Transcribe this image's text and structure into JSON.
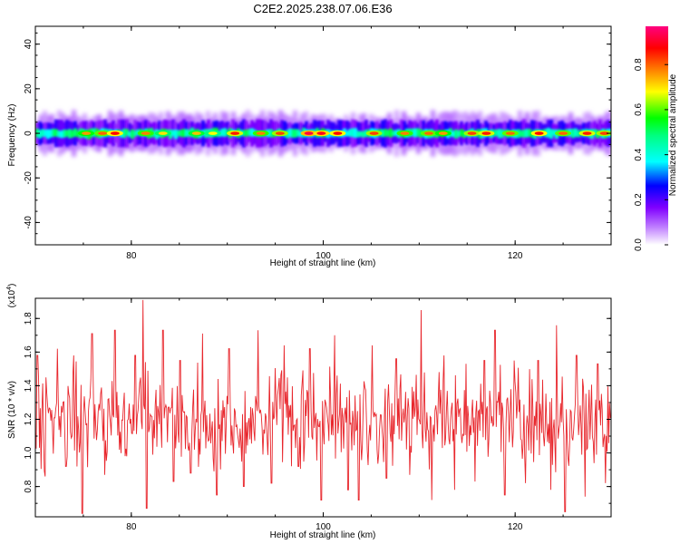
{
  "title": "C2E2.2025.238.07.06.E36",
  "chart_data": [
    {
      "type": "heatmap",
      "name": "spectrogram",
      "xlabel": "Height of straight line (km)",
      "ylabel": "Frequency (Hz)",
      "xlim": [
        70,
        130
      ],
      "ylim": [
        -50,
        48
      ],
      "xticks": [
        "80",
        "100",
        "120"
      ],
      "yticks": [
        "-40",
        "-20",
        "0",
        "20",
        "40"
      ],
      "colorbar": {
        "label": "Normalized spectral amplitude",
        "range": [
          0,
          0.97
        ],
        "ticks": [
          "0.0",
          "0.2",
          "0.4",
          "0.6",
          "0.8"
        ],
        "colors": [
          "#ffffff",
          "#c080ff",
          "#8000ff",
          "#0000ff",
          "#00ffff",
          "#00ff80",
          "#00ff00",
          "#ffff00",
          "#ff8000",
          "#ff0000",
          "#ff0080"
        ]
      },
      "band": {
        "center_hz": 0,
        "core_halfwidth_hz": 2,
        "outer_halfwidth_hz": 7
      },
      "peaks": [
        {
          "x": 75.3,
          "v": 0.78
        },
        {
          "x": 77.0,
          "v": 0.82
        },
        {
          "x": 78.3,
          "v": 0.9
        },
        {
          "x": 81.5,
          "v": 0.8
        },
        {
          "x": 83.3,
          "v": 0.72
        },
        {
          "x": 86.8,
          "v": 0.75
        },
        {
          "x": 88.5,
          "v": 0.7
        },
        {
          "x": 90.8,
          "v": 0.88
        },
        {
          "x": 93.5,
          "v": 0.8
        },
        {
          "x": 95.5,
          "v": 0.85
        },
        {
          "x": 98.5,
          "v": 0.95
        },
        {
          "x": 99.8,
          "v": 0.92
        },
        {
          "x": 101.5,
          "v": 0.9
        },
        {
          "x": 105.3,
          "v": 0.85
        },
        {
          "x": 108.5,
          "v": 0.8
        },
        {
          "x": 111.0,
          "v": 0.82
        },
        {
          "x": 112.5,
          "v": 0.78
        },
        {
          "x": 115.5,
          "v": 0.85
        },
        {
          "x": 117.0,
          "v": 0.88
        },
        {
          "x": 119.5,
          "v": 0.82
        },
        {
          "x": 122.5,
          "v": 0.9
        },
        {
          "x": 125.0,
          "v": 0.82
        },
        {
          "x": 127.5,
          "v": 0.88
        },
        {
          "x": 129.3,
          "v": 0.85
        }
      ]
    },
    {
      "type": "line",
      "name": "snr",
      "xlabel": "Height of straight line (km)",
      "ylabel": "SNR (10 * v/v)",
      "multiplier": "(x10",
      "multiplier_exp": "4",
      "multiplier_close": ")",
      "xlim": [
        70,
        130
      ],
      "ylim": [
        0.62,
        1.92
      ],
      "xticks": [
        "80",
        "100",
        "120"
      ],
      "yticks": [
        "0.8",
        "1.0",
        "1.2",
        "1.4",
        "1.6",
        "1.8"
      ],
      "color": "#e8262c",
      "anchors": [
        {
          "x": 70.2,
          "y": 1.58
        },
        {
          "x": 71.0,
          "y": 0.86
        },
        {
          "x": 72.3,
          "y": 1.62
        },
        {
          "x": 73.2,
          "y": 0.92
        },
        {
          "x": 74.0,
          "y": 1.58
        },
        {
          "x": 74.9,
          "y": 0.64
        },
        {
          "x": 75.9,
          "y": 1.71
        },
        {
          "x": 77.2,
          "y": 0.87
        },
        {
          "x": 78.3,
          "y": 1.73
        },
        {
          "x": 79.5,
          "y": 0.98
        },
        {
          "x": 80.4,
          "y": 1.58
        },
        {
          "x": 81.2,
          "y": 1.91
        },
        {
          "x": 81.6,
          "y": 0.67
        },
        {
          "x": 83.3,
          "y": 1.73
        },
        {
          "x": 84.4,
          "y": 0.83
        },
        {
          "x": 85.1,
          "y": 1.55
        },
        {
          "x": 86.2,
          "y": 0.88
        },
        {
          "x": 87.4,
          "y": 1.71
        },
        {
          "x": 88.9,
          "y": 0.75
        },
        {
          "x": 90.2,
          "y": 1.62
        },
        {
          "x": 91.7,
          "y": 0.8
        },
        {
          "x": 93.2,
          "y": 1.73
        },
        {
          "x": 94.6,
          "y": 0.82
        },
        {
          "x": 95.9,
          "y": 1.64
        },
        {
          "x": 97.4,
          "y": 0.92
        },
        {
          "x": 98.6,
          "y": 1.62
        },
        {
          "x": 99.8,
          "y": 0.72
        },
        {
          "x": 101.2,
          "y": 1.7
        },
        {
          "x": 102.6,
          "y": 0.78
        },
        {
          "x": 103.7,
          "y": 0.72
        },
        {
          "x": 105.1,
          "y": 1.64
        },
        {
          "x": 106.6,
          "y": 0.85
        },
        {
          "x": 107.6,
          "y": 1.56
        },
        {
          "x": 109.0,
          "y": 0.87
        },
        {
          "x": 110.2,
          "y": 1.85
        },
        {
          "x": 111.3,
          "y": 0.72
        },
        {
          "x": 112.6,
          "y": 1.58
        },
        {
          "x": 113.7,
          "y": 0.78
        },
        {
          "x": 114.9,
          "y": 1.53
        },
        {
          "x": 115.8,
          "y": 0.83
        },
        {
          "x": 116.8,
          "y": 1.55
        },
        {
          "x": 117.9,
          "y": 1.73
        },
        {
          "x": 118.9,
          "y": 0.75
        },
        {
          "x": 119.9,
          "y": 1.55
        },
        {
          "x": 121.1,
          "y": 0.82
        },
        {
          "x": 122.4,
          "y": 1.55
        },
        {
          "x": 123.7,
          "y": 0.78
        },
        {
          "x": 124.3,
          "y": 1.76
        },
        {
          "x": 125.2,
          "y": 0.65
        },
        {
          "x": 126.4,
          "y": 1.58
        },
        {
          "x": 127.3,
          "y": 0.74
        },
        {
          "x": 128.6,
          "y": 1.53
        },
        {
          "x": 129.4,
          "y": 0.82
        },
        {
          "x": 130.0,
          "y": 1.48
        }
      ],
      "baseline": 1.2,
      "noise_amplitude": 0.32
    }
  ]
}
